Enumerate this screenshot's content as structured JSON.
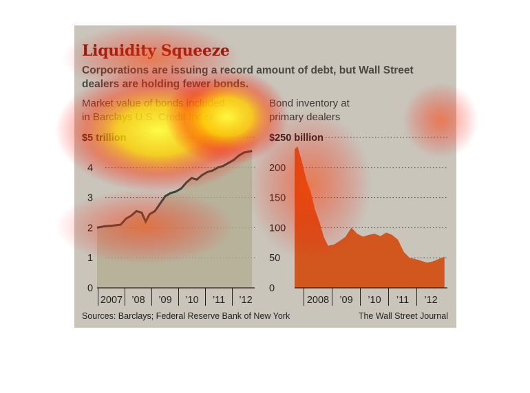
{
  "title": "Liquidity Squeeze",
  "subtitle": "Corporations are issuing a record amount of debt, but Wall Street dealers are holding fewer bonds.",
  "source": "Sources: Barclays; Federal Reserve Bank of New York",
  "credit": "The Wall Street Journal",
  "colors": {
    "background": "#c9c5bb",
    "title": "#8a1e12",
    "line": "#2e4a3c",
    "left_fill": "#b3ab90",
    "right_fill": "#d2571e"
  },
  "chart_data": [
    {
      "type": "area",
      "header": [
        "Market value of bonds included",
        "in Barclays U.S. Credit Index"
      ],
      "unit_tick": "$5 trillion",
      "yticks": [
        "0",
        "1",
        "2",
        "3",
        "4"
      ],
      "ylim": [
        0,
        5
      ],
      "xlabels": [
        "2007",
        "’08",
        "’09",
        "’10",
        "’11",
        "’12"
      ],
      "xlim": [
        2007,
        2013
      ],
      "x": [
        2007.0,
        2007.3,
        2007.6,
        2007.9,
        2008.1,
        2008.3,
        2008.5,
        2008.7,
        2008.85,
        2009.0,
        2009.2,
        2009.4,
        2009.6,
        2009.8,
        2010.0,
        2010.2,
        2010.4,
        2010.6,
        2010.8,
        2011.0,
        2011.2,
        2011.4,
        2011.6,
        2011.8,
        2012.0,
        2012.2,
        2012.4,
        2012.6,
        2012.9
      ],
      "y": [
        2.0,
        2.05,
        2.07,
        2.1,
        2.3,
        2.4,
        2.55,
        2.5,
        2.2,
        2.45,
        2.55,
        2.8,
        3.05,
        3.15,
        3.2,
        3.3,
        3.5,
        3.65,
        3.6,
        3.75,
        3.85,
        3.9,
        4.0,
        4.05,
        4.15,
        4.25,
        4.4,
        4.5,
        4.55
      ]
    },
    {
      "type": "area",
      "header": [
        "Bond inventory at",
        "primary dealers"
      ],
      "unit_tick": "$250 billion",
      "yticks": [
        "0",
        "50",
        "100",
        "150",
        "200"
      ],
      "ylim": [
        0,
        250
      ],
      "xlabels": [
        "2008",
        "’09",
        "’10",
        "’11",
        "’12"
      ],
      "xlim": [
        2007.75,
        2013
      ],
      "x": [
        2007.75,
        2007.85,
        2008.0,
        2008.15,
        2008.3,
        2008.45,
        2008.6,
        2008.75,
        2008.9,
        2009.1,
        2009.3,
        2009.5,
        2009.7,
        2009.9,
        2010.1,
        2010.3,
        2010.5,
        2010.7,
        2010.9,
        2011.1,
        2011.3,
        2011.5,
        2011.7,
        2011.9,
        2012.1,
        2012.3,
        2012.5,
        2012.7,
        2012.9
      ],
      "y": [
        230,
        235,
        210,
        180,
        160,
        130,
        110,
        85,
        70,
        72,
        78,
        85,
        100,
        90,
        85,
        88,
        90,
        86,
        92,
        88,
        80,
        60,
        50,
        48,
        45,
        42,
        44,
        48,
        52
      ]
    }
  ]
}
